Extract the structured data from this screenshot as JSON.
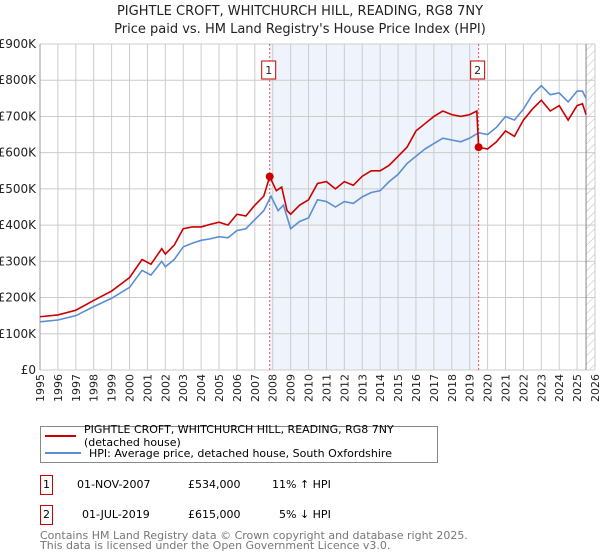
{
  "chart_data": {
    "type": "line",
    "title": "PIGHTLE CROFT, WHITCHURCH HILL, READING, RG8 7NY",
    "subtitle": "Price paid vs. HM Land Registry's House Price Index (HPI)",
    "xlim": [
      1995,
      2026
    ],
    "ylim": [
      0,
      900000
    ],
    "yticks": [
      0,
      100000,
      200000,
      300000,
      400000,
      500000,
      600000,
      700000,
      800000,
      900000
    ],
    "ytick_labels": [
      "£0",
      "£100K",
      "£200K",
      "£300K",
      "£400K",
      "£500K",
      "£600K",
      "£700K",
      "£800K",
      "£900K"
    ],
    "xticks": [
      1995,
      1996,
      1997,
      1998,
      1999,
      2000,
      2001,
      2002,
      2003,
      2004,
      2005,
      2006,
      2007,
      2008,
      2009,
      2010,
      2011,
      2012,
      2013,
      2014,
      2015,
      2016,
      2017,
      2018,
      2019,
      2020,
      2021,
      2022,
      2023,
      2024,
      2025,
      2026
    ],
    "grid": true,
    "shaded_range": [
      2007.83,
      2019.5
    ],
    "hatched_from": 2025.5,
    "series": [
      {
        "name": "PIGHTLE CROFT, WHITCHURCH HILL, READING, RG8 7NY (detached house)",
        "color": "#cc0000",
        "x": [
          1995,
          1996,
          1997,
          1998,
          1999,
          2000,
          2000.7,
          2001.2,
          2001.8,
          2002,
          2002.5,
          2003,
          2003.5,
          2004,
          2004.5,
          2005,
          2005.5,
          2006,
          2006.5,
          2007,
          2007.5,
          2007.83,
          2008.2,
          2008.5,
          2008.8,
          2009,
          2009.5,
          2010,
          2010.5,
          2011,
          2011.5,
          2012,
          2012.5,
          2013,
          2013.5,
          2014,
          2014.5,
          2015,
          2015.5,
          2016,
          2016.5,
          2017,
          2017.5,
          2018,
          2018.5,
          2019,
          2019.4,
          2019.5,
          2020,
          2020.5,
          2021,
          2021.5,
          2022,
          2022.5,
          2023,
          2023.5,
          2024,
          2024.5,
          2025,
          2025.3,
          2025.5
        ],
        "y": [
          147,
          152,
          165,
          192,
          218,
          255,
          305,
          292,
          335,
          320,
          345,
          390,
          395,
          395,
          402,
          408,
          400,
          430,
          425,
          455,
          480,
          534,
          495,
          505,
          440,
          430,
          455,
          470,
          515,
          520,
          500,
          520,
          510,
          535,
          550,
          550,
          565,
          590,
          615,
          660,
          680,
          700,
          715,
          705,
          700,
          705,
          715,
          615,
          610,
          630,
          660,
          645,
          690,
          720,
          745,
          715,
          730,
          690,
          730,
          735,
          705
        ]
      },
      {
        "name": "HPI: Average price, detached house, South Oxfordshire",
        "color": "#5b8fd4",
        "x": [
          1995,
          1996,
          1997,
          1998,
          1999,
          2000,
          2000.7,
          2001.2,
          2001.8,
          2002,
          2002.5,
          2003,
          2003.5,
          2004,
          2004.5,
          2005,
          2005.5,
          2006,
          2006.5,
          2007,
          2007.5,
          2007.9,
          2008.3,
          2008.6,
          2009,
          2009.5,
          2010,
          2010.5,
          2011,
          2011.5,
          2012,
          2012.5,
          2013,
          2013.5,
          2014,
          2014.5,
          2015,
          2015.5,
          2016,
          2016.5,
          2017,
          2017.5,
          2018,
          2018.5,
          2019,
          2019.5,
          2020,
          2020.5,
          2021,
          2021.5,
          2022,
          2022.5,
          2023,
          2023.5,
          2024,
          2024.5,
          2025,
          2025.3,
          2025.5
        ],
        "y": [
          133,
          138,
          150,
          175,
          198,
          228,
          275,
          262,
          300,
          285,
          305,
          340,
          350,
          358,
          362,
          368,
          365,
          385,
          390,
          415,
          440,
          480,
          440,
          455,
          390,
          410,
          420,
          470,
          465,
          450,
          465,
          460,
          478,
          490,
          495,
          520,
          540,
          570,
          590,
          610,
          625,
          640,
          635,
          630,
          640,
          655,
          650,
          670,
          700,
          690,
          720,
          760,
          785,
          760,
          765,
          740,
          770,
          770,
          750
        ]
      }
    ],
    "y_units": "£K",
    "sales": [
      {
        "label": "1",
        "date": "01-NOV-2007",
        "x": 2007.83,
        "price": "£534,000",
        "value": 534,
        "hpi": "11% ↑ HPI"
      },
      {
        "label": "2",
        "date": "01-JUL-2019",
        "x": 2019.5,
        "price": "£615,000",
        "value": 615,
        "hpi": "5% ↓ HPI"
      }
    ]
  },
  "footer": [
    "Contains HM Land Registry data © Crown copyright and database right 2025.",
    "This data is licensed under the Open Government Licence v3.0."
  ]
}
